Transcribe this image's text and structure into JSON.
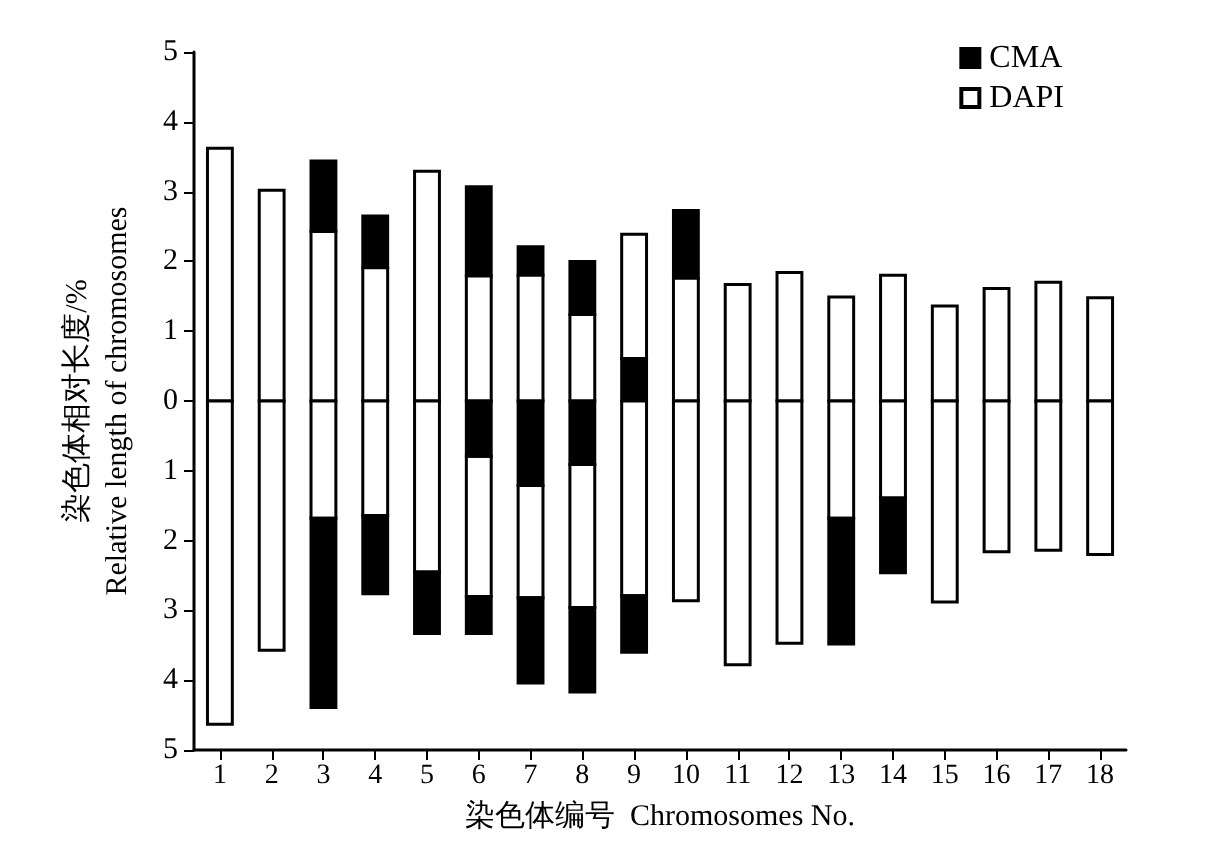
{
  "chart_data": {
    "type": "bar",
    "xlabel": "染色体编号  Chromosomes No.",
    "ylabel": "染色体相对长度/%\nRelative length of chromosomes",
    "categories": [
      "1",
      "2",
      "3",
      "4",
      "5",
      "6",
      "7",
      "8",
      "9",
      "10",
      "11",
      "12",
      "13",
      "14",
      "15",
      "16",
      "17",
      "18"
    ],
    "series": [
      {
        "name": "CMA",
        "color": "#000000",
        "base": [
          null,
          null,
          2.43,
          1.91,
          null,
          1.79,
          1.8,
          1.24,
          0,
          1.76,
          null,
          null,
          null,
          null,
          null,
          null,
          null,
          null
        ],
        "values": [
          null,
          null,
          1.01,
          0.74,
          null,
          1.28,
          0.41,
          0.76,
          0.61,
          0.97,
          null,
          null,
          null,
          null,
          null,
          null,
          null,
          null
        ]
      },
      {
        "name": "DAPI",
        "color": "#ffffff",
        "base": [
          0,
          0,
          0,
          0,
          0,
          0,
          0,
          0,
          0.61,
          0,
          0,
          0,
          0,
          0,
          0,
          0,
          0,
          0
        ],
        "values": [
          3.62,
          3.02,
          2.43,
          1.91,
          3.29,
          1.79,
          1.8,
          1.24,
          1.78,
          1.76,
          1.67,
          1.84,
          1.49,
          1.8,
          1.36,
          1.61,
          1.7,
          1.48
        ]
      },
      {
        "color": "#ffffff",
        "base": [
          0,
          0,
          0,
          0,
          0,
          -0.79,
          -1.21,
          -0.91,
          0,
          0,
          0,
          0,
          0,
          0,
          0,
          0,
          0,
          0
        ],
        "values": [
          -4.63,
          -3.57,
          -1.68,
          -1.64,
          -2.45,
          -2.01,
          -1.61,
          -2.05,
          -2.79,
          -2.86,
          -3.78,
          -3.47,
          -1.68,
          -1.39,
          -2.88,
          -2.16,
          -2.14,
          -2.2
        ]
      },
      {
        "color": "#000000",
        "base": [
          null,
          null,
          null,
          null,
          null,
          0,
          0,
          0,
          null,
          null,
          null,
          null,
          null,
          null,
          null,
          null,
          null,
          null
        ],
        "values": [
          null,
          null,
          null,
          null,
          null,
          -0.79,
          -1.21,
          -0.91,
          null,
          null,
          null,
          null,
          null,
          null,
          null,
          null,
          null,
          null
        ]
      },
      {
        "color": "#000000",
        "base": [
          null,
          null,
          -1.68,
          -1.64,
          -2.45,
          -2.8,
          -2.82,
          -2.96,
          -2.79,
          null,
          null,
          null,
          -1.68,
          -1.39,
          null,
          null,
          null,
          null
        ],
        "values": [
          null,
          null,
          -2.71,
          -1.12,
          -0.88,
          -0.53,
          -1.22,
          -1.21,
          -0.81,
          null,
          null,
          null,
          -1.8,
          -1.07,
          null,
          null,
          null,
          null
        ]
      }
    ],
    "ylim": [
      -5,
      5
    ],
    "yticks": [
      {
        "value": -5,
        "label": "5"
      },
      {
        "value": -4,
        "label": "4"
      },
      {
        "value": -3,
        "label": "3"
      },
      {
        "value": -2,
        "label": "2"
      },
      {
        "value": -1,
        "label": "1"
      },
      0,
      1,
      2,
      3,
      4,
      5
    ],
    "grid": false,
    "legend": "top right"
  }
}
